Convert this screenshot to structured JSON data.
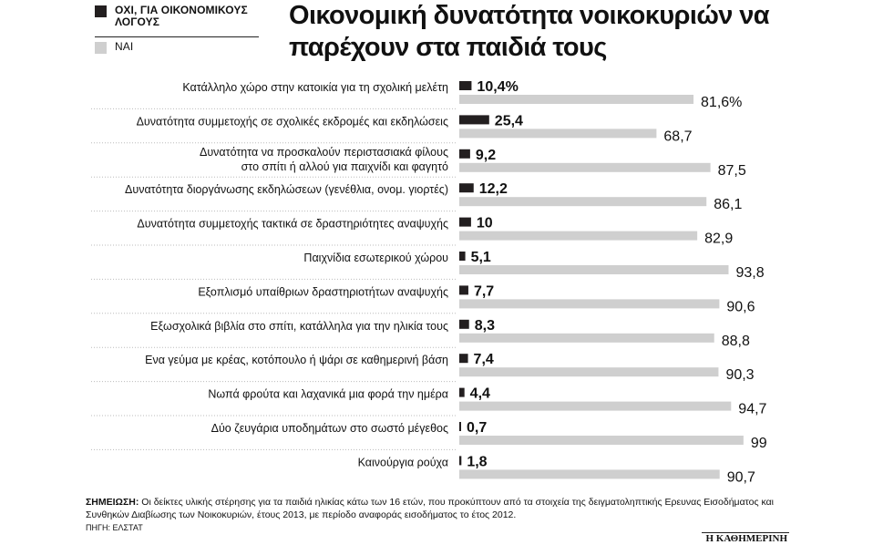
{
  "legend": {
    "no_label": "ΟΧΙ, ΓΙΑ ΟΙΚΟΝΟΜΙΚΟΥΣ ΛΟΓΟΥΣ",
    "yes_label": "ΝΑΙ"
  },
  "title": "Οικονομική δυνατότητα νοικοκυριών να παρέχουν στα παιδιά τους",
  "colors": {
    "no": "#231f20",
    "yes": "#cfcfcf"
  },
  "chart_data": {
    "type": "bar",
    "orientation": "horizontal",
    "title": "Οικονομική δυνατότητα νοικοκυριών να παρέχουν στα παιδιά τους",
    "categories": [
      "Κατάλληλο χώρο στην κατοικία για τη σχολική μελέτη",
      "Δυνατότητα συμμετοχής σε σχολικές εκδρομές και εκδηλώσεις",
      "Δυνατότητα να προσκαλούν περιστασιακά φίλους στο σπίτι ή αλλού για παιχνίδι και φαγητό",
      "Δυνατότητα διοργάνωσης εκδηλώσεων (γενέθλια, ονομ. γιορτές)",
      "Δυνατότητα συμμετοχής τακτικά σε δραστηριότητες αναψυχής",
      "Παιχνίδια εσωτερικού χώρου",
      "Εξοπλισμό υπαίθριων δραστηριοτήτων αναψυχής",
      "Εξωσχολικά βιβλία στο σπίτι, κατάλληλα για την ηλικία τους",
      "Ενα γεύμα με κρέας, κοτόπουλο ή ψάρι σε καθημερινή βάση",
      "Νωπά φρούτα και λαχανικά μια φορά την ημέρα",
      "Δύο ζευγάρια υποδημάτων στο σωστό μέγεθος",
      "Καινούργια ρούχα"
    ],
    "category_lines": [
      [
        "Κατάλληλο χώρο στην κατοικία για τη σχολική μελέτη"
      ],
      [
        "Δυνατότητα συμμετοχής σε σχολικές εκδρομές και εκδηλώσεις"
      ],
      [
        "Δυνατότητα να προσκαλούν περιστασιακά φίλους",
        "στο σπίτι ή αλλού για παιχνίδι και φαγητό"
      ],
      [
        "Δυνατότητα διοργάνωσης εκδηλώσεων (γενέθλια, ονομ. γιορτές)"
      ],
      [
        "Δυνατότητα συμμετοχής τακτικά σε δραστηριότητες αναψυχής"
      ],
      [
        "Παιχνίδια εσωτερικού χώρου"
      ],
      [
        "Εξοπλισμό υπαίθριων δραστηριοτήτων αναψυχής"
      ],
      [
        "Εξωσχολικά βιβλία στο σπίτι, κατάλληλα για την ηλικία τους"
      ],
      [
        "Ενα γεύμα με κρέας, κοτόπουλο ή ψάρι σε καθημερινή βάση"
      ],
      [
        "Νωπά φρούτα και λαχανικά μια φορά την ημέρα"
      ],
      [
        "Δύο ζευγάρια υποδημάτων στο σωστό μέγεθος"
      ],
      [
        "Καινούργια ρούχα"
      ]
    ],
    "series": [
      {
        "name": "ΟΧΙ, ΓΙΑ ΟΙΚΟΝΟΜΙΚΟΥΣ ΛΟΓΟΥΣ",
        "values": [
          10.4,
          25.4,
          9.2,
          12.2,
          10,
          5.1,
          7.7,
          8.3,
          7.4,
          4.4,
          0.7,
          1.8
        ],
        "labels": [
          "10,4%",
          "25,4",
          "9,2",
          "12,2",
          "10",
          "5,1",
          "7,7",
          "8,3",
          "7,4",
          "4,4",
          "0,7",
          "1,8"
        ]
      },
      {
        "name": "ΝΑΙ",
        "values": [
          81.6,
          68.7,
          87.5,
          86.1,
          82.9,
          93.8,
          90.6,
          88.8,
          90.3,
          94.7,
          99,
          90.7
        ],
        "labels": [
          "81,6%",
          "68,7",
          "87,5",
          "86,1",
          "82,9",
          "93,8",
          "90,6",
          "88,8",
          "90,3",
          "94,7",
          "99",
          "90,7"
        ]
      }
    ],
    "xlim": [
      0,
      100
    ],
    "units": "%",
    "grid": false,
    "legend_position": "top-left"
  },
  "note": {
    "label": "ΣΗΜΕΙΩΣΗ:",
    "text": " Οι δείκτες υλικής στέρησης για τα παιδιά ηλικίας κάτω των 16 ετών, που προκύπτουν από τα στοιχεία της δειγματοληπτικής Ερευνας Εισοδήματος και Συνθηκών Διαβίωσης των Νοικοκυριών, έτους 2013, με περίοδο αναφοράς εισοδήματος το έτος 2012."
  },
  "source": "ΠΗΓΗ: ΕΛΣΤΑΤ",
  "brand": "Η ΚΑΘΗΜΕΡΙΝΗ"
}
